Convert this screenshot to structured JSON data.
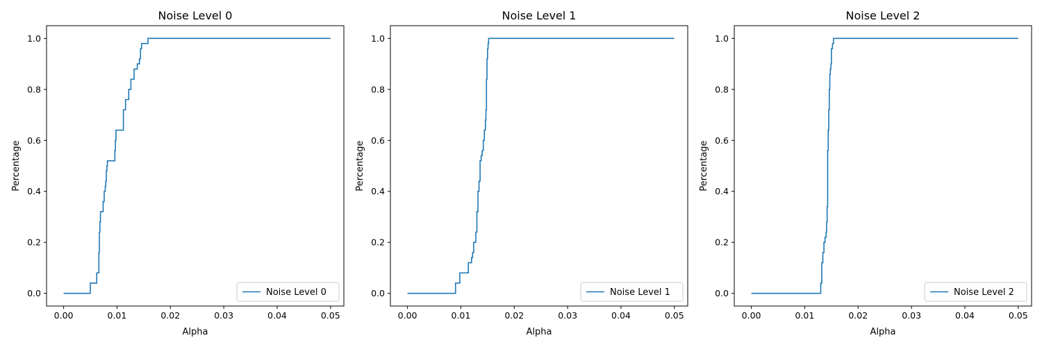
{
  "chart_data": [
    {
      "type": "line",
      "title": "Noise Level 0",
      "xlabel": "Alpha",
      "ylabel": "Percentage",
      "xlim": [
        -0.0032,
        0.0525
      ],
      "ylim": [
        -0.05,
        1.05
      ],
      "xticks": [
        0.0,
        0.01,
        0.02,
        0.03,
        0.04,
        0.05
      ],
      "xtick_labels": [
        "0.00",
        "0.01",
        "0.02",
        "0.03",
        "0.04",
        "0.05"
      ],
      "yticks": [
        0.0,
        0.2,
        0.4,
        0.6,
        0.8,
        1.0
      ],
      "ytick_labels": [
        "0.0",
        "0.2",
        "0.4",
        "0.6",
        "0.8",
        "1.0"
      ],
      "legend_position": "lower-right",
      "grid": false,
      "color": "#1f77b4",
      "series": [
        {
          "name": "Noise Level 0",
          "x": [
            0.0,
            0.005,
            0.005,
            0.0062,
            0.0062,
            0.0066,
            0.0066,
            0.0067,
            0.0067,
            0.0068,
            0.0068,
            0.0069,
            0.0069,
            0.0074,
            0.0074,
            0.0076,
            0.0076,
            0.0078,
            0.0078,
            0.0079,
            0.0079,
            0.008,
            0.008,
            0.0081,
            0.0081,
            0.0082,
            0.0082,
            0.0096,
            0.0096,
            0.0097,
            0.0097,
            0.0098,
            0.0098,
            0.0112,
            0.0112,
            0.0116,
            0.0116,
            0.0122,
            0.0122,
            0.0126,
            0.0126,
            0.0132,
            0.0132,
            0.0138,
            0.0138,
            0.0142,
            0.0142,
            0.0144,
            0.0144,
            0.0146,
            0.0146,
            0.0158,
            0.0158,
            0.05
          ],
          "y": [
            0.0,
            0.0,
            0.04,
            0.04,
            0.08,
            0.08,
            0.16,
            0.16,
            0.24,
            0.24,
            0.28,
            0.28,
            0.32,
            0.32,
            0.36,
            0.36,
            0.4,
            0.4,
            0.42,
            0.42,
            0.44,
            0.44,
            0.48,
            0.48,
            0.5,
            0.5,
            0.52,
            0.52,
            0.56,
            0.56,
            0.6,
            0.6,
            0.64,
            0.64,
            0.72,
            0.72,
            0.76,
            0.76,
            0.8,
            0.8,
            0.84,
            0.84,
            0.88,
            0.88,
            0.9,
            0.9,
            0.92,
            0.92,
            0.96,
            0.96,
            0.98,
            0.98,
            1.0,
            1.0
          ]
        }
      ]
    },
    {
      "type": "line",
      "title": "Noise Level 1",
      "xlabel": "Alpha",
      "ylabel": "Percentage",
      "xlim": [
        -0.0032,
        0.0525
      ],
      "ylim": [
        -0.05,
        1.05
      ],
      "xticks": [
        0.0,
        0.01,
        0.02,
        0.03,
        0.04,
        0.05
      ],
      "xtick_labels": [
        "0.00",
        "0.01",
        "0.02",
        "0.03",
        "0.04",
        "0.05"
      ],
      "yticks": [
        0.0,
        0.2,
        0.4,
        0.6,
        0.8,
        1.0
      ],
      "ytick_labels": [
        "0.0",
        "0.2",
        "0.4",
        "0.6",
        "0.8",
        "1.0"
      ],
      "legend_position": "lower-right",
      "grid": false,
      "color": "#1f77b4",
      "series": [
        {
          "name": "Noise Level 1",
          "x": [
            0.0,
            0.009,
            0.009,
            0.0098,
            0.0098,
            0.0114,
            0.0114,
            0.012,
            0.012,
            0.0122,
            0.0122,
            0.0124,
            0.0124,
            0.0128,
            0.0128,
            0.013,
            0.013,
            0.0132,
            0.0132,
            0.0134,
            0.0134,
            0.0136,
            0.0136,
            0.0138,
            0.0138,
            0.014,
            0.014,
            0.0142,
            0.0142,
            0.0144,
            0.0144,
            0.0146,
            0.0146,
            0.0147,
            0.0147,
            0.0148,
            0.0148,
            0.0149,
            0.0149,
            0.015,
            0.015,
            0.0151,
            0.0151,
            0.0152,
            0.0152,
            0.05
          ],
          "y": [
            0.0,
            0.0,
            0.04,
            0.04,
            0.08,
            0.08,
            0.12,
            0.12,
            0.14,
            0.14,
            0.16,
            0.16,
            0.2,
            0.2,
            0.24,
            0.24,
            0.32,
            0.32,
            0.4,
            0.4,
            0.44,
            0.44,
            0.52,
            0.52,
            0.54,
            0.54,
            0.56,
            0.56,
            0.6,
            0.6,
            0.64,
            0.64,
            0.68,
            0.68,
            0.72,
            0.72,
            0.84,
            0.84,
            0.92,
            0.92,
            0.96,
            0.96,
            0.98,
            0.98,
            1.0,
            1.0
          ]
        }
      ]
    },
    {
      "type": "line",
      "title": "Noise Level 2",
      "xlabel": "Alpha",
      "ylabel": "Percentage",
      "xlim": [
        -0.0032,
        0.0525
      ],
      "ylim": [
        -0.05,
        1.05
      ],
      "xticks": [
        0.0,
        0.01,
        0.02,
        0.03,
        0.04,
        0.05
      ],
      "xtick_labels": [
        "0.00",
        "0.01",
        "0.02",
        "0.03",
        "0.04",
        "0.05"
      ],
      "yticks": [
        0.0,
        0.2,
        0.4,
        0.6,
        0.8,
        1.0
      ],
      "ytick_labels": [
        "0.0",
        "0.2",
        "0.4",
        "0.6",
        "0.8",
        "1.0"
      ],
      "legend_position": "lower-right",
      "grid": false,
      "color": "#1f77b4",
      "series": [
        {
          "name": "Noise Level 2",
          "x": [
            0.0,
            0.013,
            0.013,
            0.0132,
            0.0132,
            0.0134,
            0.0134,
            0.0136,
            0.0136,
            0.0138,
            0.0138,
            0.014,
            0.014,
            0.0141,
            0.0141,
            0.0142,
            0.0142,
            0.0143,
            0.0143,
            0.0144,
            0.0144,
            0.0145,
            0.0145,
            0.0146,
            0.0146,
            0.0147,
            0.0147,
            0.0148,
            0.0148,
            0.0149,
            0.0149,
            0.015,
            0.015,
            0.0152,
            0.0152,
            0.0154,
            0.0154,
            0.05
          ],
          "y": [
            0.0,
            0.0,
            0.04,
            0.04,
            0.12,
            0.12,
            0.16,
            0.16,
            0.2,
            0.2,
            0.22,
            0.22,
            0.24,
            0.24,
            0.28,
            0.28,
            0.34,
            0.34,
            0.56,
            0.56,
            0.64,
            0.64,
            0.72,
            0.72,
            0.8,
            0.8,
            0.86,
            0.86,
            0.88,
            0.88,
            0.9,
            0.9,
            0.96,
            0.96,
            0.98,
            0.98,
            1.0,
            1.0
          ]
        }
      ]
    }
  ]
}
